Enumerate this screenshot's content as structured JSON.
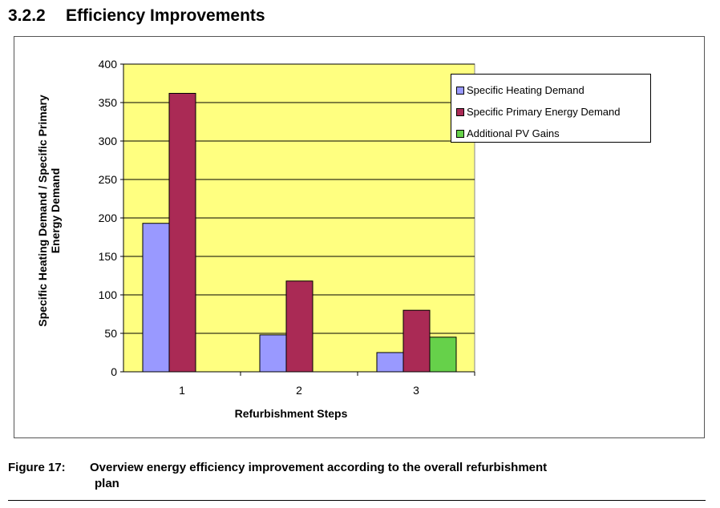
{
  "heading": {
    "number": "3.2.2",
    "title": "Efficiency Improvements"
  },
  "caption": {
    "label": "Figure 17:",
    "text_line1": "Overview energy efficiency improvement according to the overall refurbishment",
    "text_line2": "plan"
  },
  "colors": {
    "plot_background": "#ffff80",
    "heating": "#9999ff",
    "primary": "#aa2a55",
    "pv": "#66d14a"
  },
  "chart_data": {
    "type": "bar",
    "categories": [
      "1",
      "2",
      "3"
    ],
    "series": [
      {
        "name": "Specific Heating Demand",
        "values": [
          193,
          48,
          25
        ]
      },
      {
        "name": "Specific Primary Energy Demand",
        "values": [
          362,
          118,
          80
        ]
      },
      {
        "name": "Additional PV Gains",
        "values": [
          null,
          null,
          45
        ]
      }
    ],
    "xlabel": "Refurbishment Steps",
    "ylabel_line1": "Specific Heating Demand  / Specific Primary",
    "ylabel_line2": "Energy Demand",
    "ylim": [
      0,
      400
    ],
    "yticks": [
      0,
      50,
      100,
      150,
      200,
      250,
      300,
      350,
      400
    ],
    "grid": true,
    "legend_position": "top-right"
  }
}
